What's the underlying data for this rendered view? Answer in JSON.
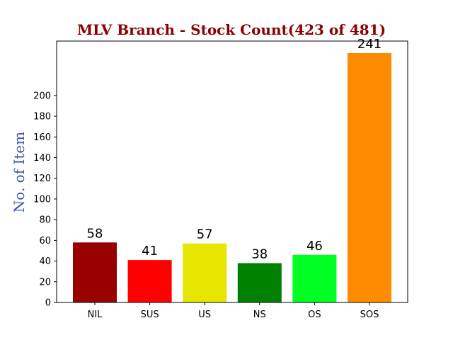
{
  "chart_data": {
    "type": "bar",
    "title": "MLV Branch - Stock Count(423 of 481)",
    "xlabel": "",
    "ylabel": "No. of Item",
    "categories": [
      "NIL",
      "SUS",
      "US",
      "NS",
      "OS",
      "SOS"
    ],
    "values": [
      58,
      41,
      57,
      38,
      46,
      241
    ],
    "value_labels": [
      "58",
      "41",
      "57",
      "38",
      "46",
      "241"
    ],
    "colors": [
      "#990000",
      "#ff0000",
      "#e6e600",
      "#008000",
      "#00ff22",
      "#ff8c00"
    ],
    "yticks": [
      0,
      20,
      40,
      60,
      80,
      100,
      120,
      140,
      160,
      180,
      200
    ],
    "ytick_labels": [
      "0",
      "20",
      "40",
      "60",
      "80",
      "100",
      "120",
      "140",
      "160",
      "180",
      "200"
    ],
    "ylim": [
      0,
      241
    ],
    "grid": false,
    "legend": "none"
  }
}
